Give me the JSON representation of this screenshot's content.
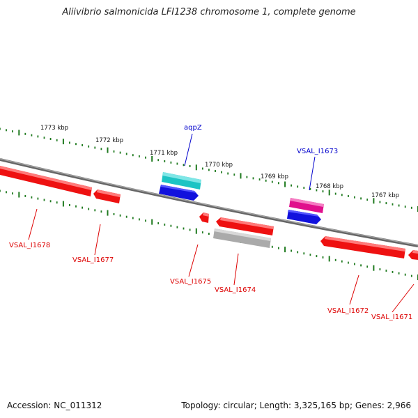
{
  "title": "Aliivibrio salmonicida LFI1238 chromosome 1, complete genome",
  "footer": {
    "accession": "Accession: NC_011312",
    "topology": "Topology: circular; Length: 3,325,165 bp; Genes: 2,966"
  },
  "colors": {
    "backbone": "#7a7a7a",
    "tick": "#1f7a1f",
    "gene_red": "#ee1111",
    "gene_blue": "#1111dd",
    "gene_cyan": "#1cc4c4",
    "gene_magenta": "#e0108c",
    "gene_grey": "#aaaaaa",
    "label_red": "#dd0000",
    "label_blue": "#0000cc"
  },
  "kbp_labels": [
    "1773 kbp",
    "1772 kbp",
    "1771 kbp",
    "1770 kbp",
    "1769 kbp",
    "1768 kbp",
    "1767 kbp"
  ],
  "genes": [
    {
      "label": "VSAL_I1678",
      "color": "red"
    },
    {
      "label": "VSAL_I1677",
      "color": "red"
    },
    {
      "label": "aqpZ",
      "color": "blue"
    },
    {
      "label": "VSAL_I1675",
      "color": "red"
    },
    {
      "label": "VSAL_I1674",
      "color": "red"
    },
    {
      "label": "VSAL_I1673",
      "color": "blue"
    },
    {
      "label": "VSAL_I1672",
      "color": "red"
    },
    {
      "label": "VSAL_I1671",
      "color": "red"
    }
  ]
}
